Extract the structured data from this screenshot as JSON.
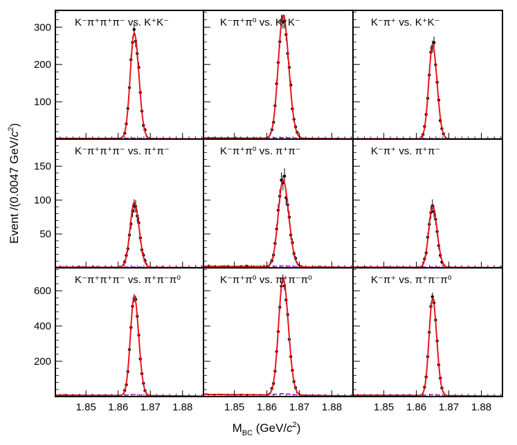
{
  "chart_data": {
    "type": "scatter",
    "title": "",
    "xlabel": "M_BC (GeV/c²)",
    "ylabel": "Event /(0.0047 GeV/c²)",
    "xlim": [
      1.8405,
      1.8865
    ],
    "x_ticks": [
      1.85,
      1.86,
      1.87,
      1.88
    ],
    "x_tick_labels": [
      "1.85",
      "1.86",
      "1.87",
      "1.88"
    ],
    "signal_color": "#e8141e",
    "background_color": "#b02fd0",
    "data_color": "#000000",
    "rows": [
      {
        "ylim": [
          0,
          345
        ],
        "y_ticks": [
          100,
          200,
          300
        ],
        "y_tick_labels": [
          "100",
          "200",
          "300"
        ]
      },
      {
        "ylim": [
          0,
          190
        ],
        "y_ticks": [
          50,
          100,
          150
        ],
        "y_tick_labels": [
          "50",
          "100",
          "150"
        ]
      },
      {
        "ylim": [
          0,
          730
        ],
        "y_ticks": [
          200,
          400,
          600
        ],
        "y_tick_labels": [
          "200",
          "400",
          "600"
        ]
      }
    ],
    "panels": [
      {
        "row": 0,
        "col": 0,
        "label": "K⁻π⁺π⁺π⁻ vs. K⁺K⁻",
        "peak": 283,
        "width": 0.00125,
        "background": 2
      },
      {
        "row": 0,
        "col": 1,
        "label": "K⁻π⁺π⁰ vs. K⁺K⁻",
        "peak": 330,
        "width": 0.0015,
        "background": 3
      },
      {
        "row": 0,
        "col": 2,
        "label": "K⁻π⁺ vs. K⁺K⁻",
        "peak": 250,
        "width": 0.0012,
        "background": 1
      },
      {
        "row": 1,
        "col": 0,
        "label": "K⁻π⁺π⁺π⁻ vs. π⁺π⁻",
        "peak": 96,
        "width": 0.0013,
        "background": 1
      },
      {
        "row": 1,
        "col": 1,
        "label": "K⁻π⁺π⁰ vs. π⁺π⁻",
        "peak": 128,
        "width": 0.0015,
        "background": 2
      },
      {
        "row": 1,
        "col": 2,
        "label": "K⁻π⁺ vs. π⁺π⁻",
        "peak": 90,
        "width": 0.0012,
        "background": 1
      },
      {
        "row": 2,
        "col": 0,
        "label": "K⁻π⁺π⁺π⁻ vs. π⁺π⁻π⁰",
        "peak": 562,
        "width": 0.0012,
        "background": 8
      },
      {
        "row": 2,
        "col": 1,
        "label": "K⁻π⁺π⁰ vs. π⁺π⁻π⁰",
        "peak": 660,
        "width": 0.0014,
        "background": 12
      },
      {
        "row": 2,
        "col": 2,
        "label": "K⁻π⁺ vs. π⁺π⁻π⁰",
        "peak": 550,
        "width": 0.0011,
        "background": 8
      }
    ]
  }
}
